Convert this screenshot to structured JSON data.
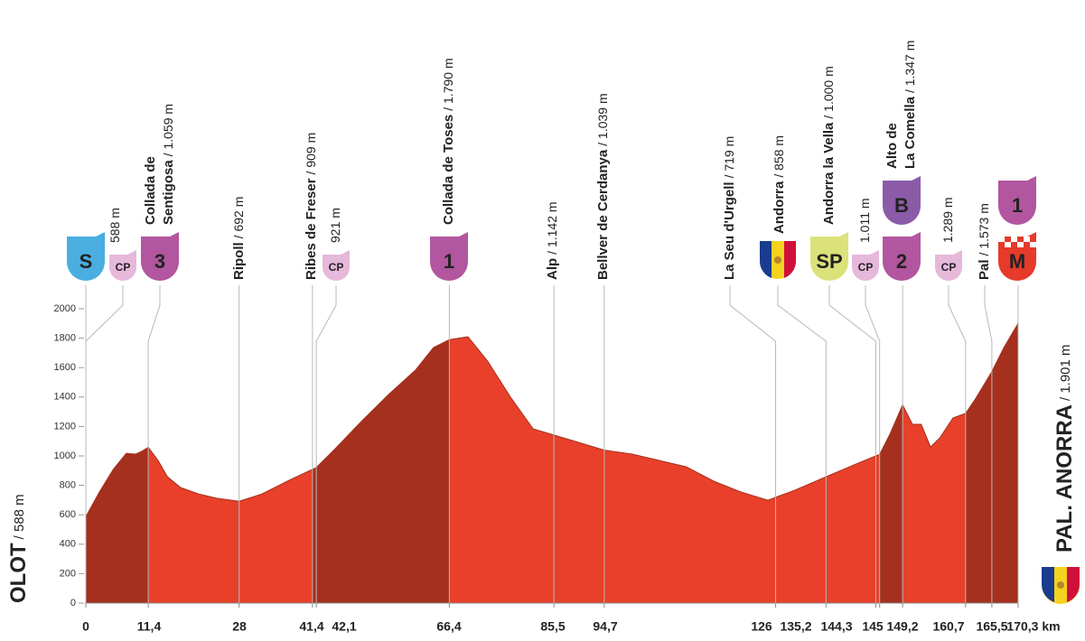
{
  "chart_data": {
    "type": "area",
    "x": [
      0,
      2.5,
      5,
      7.4,
      9.1,
      10.2,
      11.4,
      13.2,
      14.9,
      17.3,
      20.6,
      23.9,
      28,
      32.2,
      37.1,
      41.4,
      42.1,
      45.4,
      50.3,
      55.3,
      60.2,
      63.5,
      66.4,
      69.8,
      73.4,
      77.6,
      81.7,
      85.5,
      90,
      94.7,
      99.8,
      104.8,
      109.7,
      114.7,
      119.6,
      124.6,
      126,
      129.5,
      135.2,
      140.3,
      144.3,
      145,
      146.9,
      149.2,
      151,
      152.6,
      154.3,
      156,
      158.4,
      160.7,
      162.5,
      165.5,
      167.7,
      170.3
    ],
    "values": [
      588,
      755,
      908,
      1018,
      1012,
      1031,
      1059,
      969,
      859,
      785,
      742,
      712,
      692,
      742,
      834,
      909,
      921,
      1043,
      1233,
      1417,
      1583,
      1736,
      1790,
      1810,
      1644,
      1399,
      1184,
      1142,
      1092,
      1039,
      1012,
      969,
      926,
      828,
      755,
      699,
      719,
      767,
      858,
      939,
      1000,
      1011,
      1150,
      1347,
      1215,
      1215,
      1061,
      1123,
      1258,
      1289,
      1387,
      1573,
      1736,
      1901
    ],
    "xlim": [
      0,
      170.3
    ],
    "ylim": [
      0,
      2000
    ],
    "xticks": [
      0,
      {
        "value": 11.4,
        "label": "11,4"
      },
      28,
      {
        "value": 41.4,
        "label": "41,4"
      },
      {
        "value": 42.1,
        "label": "42,1"
      },
      {
        "value": 66.4,
        "label": "66,4"
      },
      {
        "value": 85.5,
        "label": "85,5"
      },
      {
        "value": 94.7,
        "label": "94,7"
      },
      126,
      {
        "value": 135.2,
        "label": "135,2"
      },
      {
        "value": 144.3,
        "label": "144,3"
      },
      145,
      {
        "value": 149.2,
        "label": "149,2"
      },
      {
        "value": 160.7,
        "label": "160,7"
      },
      {
        "value": 165.5,
        "label": "165,5"
      },
      {
        "value": 170.3,
        "label": "170,3 km"
      }
    ],
    "yticks": [
      0,
      200,
      400,
      600,
      800,
      1000,
      1200,
      1400,
      1600,
      1800,
      2000
    ],
    "color": "#e8402a",
    "climb_color": "#a5301d",
    "climbs": [
      [
        0,
        11.4
      ],
      [
        41.4,
        66.4
      ],
      [
        145,
        149.2
      ],
      [
        160.7,
        170.3
      ]
    ],
    "start": {
      "name": "OLOT",
      "alt": "/ 588 m"
    },
    "finish": {
      "name": "PAL. ANORRA",
      "alt": "/ 1.901 m"
    },
    "waypoints": [
      {
        "x": 0,
        "badges": [
          {
            "text": "S",
            "color": "#4aaee0",
            "text_color": "#ffffff"
          }
        ]
      },
      {
        "x": 0,
        "alt": "588 m",
        "badges": [
          {
            "text": "CP",
            "color": "#e6b8da",
            "text_color": "#6b2c6a"
          }
        ]
      },
      {
        "x": 11.4,
        "name": [
          "Collada de",
          "Sentigosa"
        ],
        "alt": "/ 1.059 m",
        "badges": [
          {
            "text": "3",
            "color": "#b2569f",
            "text_color": "#ffffff"
          }
        ]
      },
      {
        "x": 28,
        "name": [
          "Ripoll"
        ],
        "alt": "/ 692 m"
      },
      {
        "x": 41.4,
        "name": [
          "Ribes de Freser"
        ],
        "alt": "/ 909 m"
      },
      {
        "x": 42.1,
        "alt": "921 m",
        "badges": [
          {
            "text": "CP",
            "color": "#e6b8da",
            "text_color": "#6b2c6a"
          }
        ]
      },
      {
        "x": 66.4,
        "name": [
          "Collada de Toses"
        ],
        "alt": "/ 1.790 m",
        "badges": [
          {
            "text": "1",
            "color": "#b2569f",
            "text_color": "#ffffff"
          }
        ]
      },
      {
        "x": 85.5,
        "name": [
          "Alp"
        ],
        "alt": "/ 1.142 m"
      },
      {
        "x": 94.7,
        "name": [
          "Bellver de Cerdanya"
        ],
        "alt": "/ 1.039 m"
      },
      {
        "x": 126,
        "name": [
          "La Seu d'Urgell"
        ],
        "alt": "/ 719 m"
      },
      {
        "x": 135.2,
        "name": [
          "Andorra"
        ],
        "alt": "/ 858 m",
        "flag": true
      },
      {
        "x": 144.3,
        "name": [
          "Andorra la Vella"
        ],
        "alt": "/ 1.000 m",
        "badges": [
          {
            "text": "SP",
            "color": "#dbe27a",
            "text_color": "#333333"
          }
        ]
      },
      {
        "x": 145,
        "alt": "1.011 m",
        "badges": [
          {
            "text": "CP",
            "color": "#e6b8da",
            "text_color": "#6b2c6a"
          }
        ]
      },
      {
        "x": 149.2,
        "name": [
          "Alto de",
          "La Comella"
        ],
        "alt": "/ 1.347 m",
        "badges": [
          {
            "text": "2",
            "color": "#b2569f",
            "text_color": "#ffffff"
          },
          {
            "text": "B",
            "color": "#8b5ba8",
            "text_color": "#ffffff"
          }
        ]
      },
      {
        "x": 160.7,
        "alt": "1.289 m",
        "badges": [
          {
            "text": "CP",
            "color": "#e6b8da",
            "text_color": "#6b2c6a"
          }
        ]
      },
      {
        "x": 165.5,
        "name": [
          "Pal"
        ],
        "alt": "/ 1.573 m"
      },
      {
        "x": 170.3,
        "badges": [
          {
            "text": "M",
            "color": "#e63a2a",
            "text_color": "#ffffff",
            "checkered": true
          },
          {
            "text": "1",
            "color": "#b2569f",
            "text_color": "#ffffff"
          }
        ]
      }
    ]
  }
}
